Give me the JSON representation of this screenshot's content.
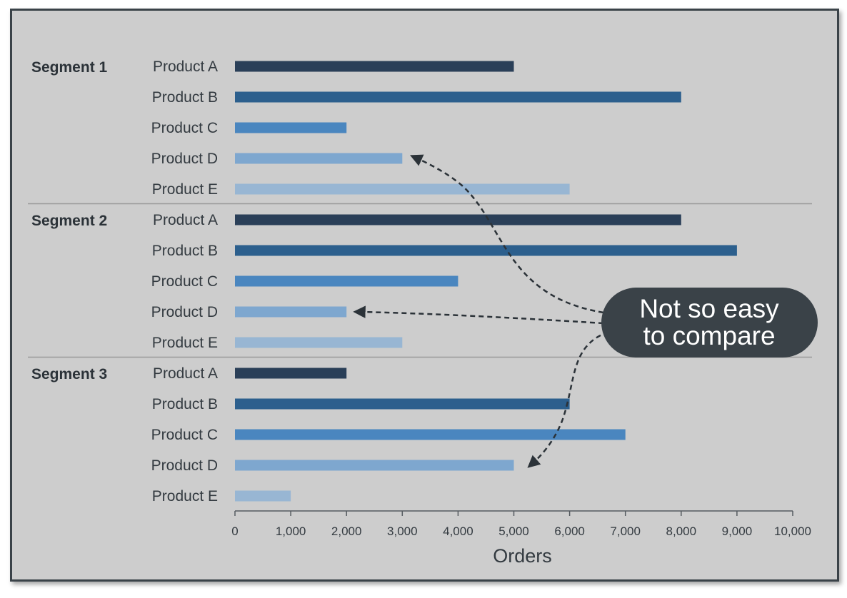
{
  "chart_data": {
    "type": "bar",
    "orientation": "horizontal",
    "xlabel": "Orders",
    "xlim": [
      0,
      10000
    ],
    "xticks": [
      0,
      1000,
      2000,
      3000,
      4000,
      5000,
      6000,
      7000,
      8000,
      9000,
      10000
    ],
    "xtick_labels": [
      "0",
      "1,000",
      "2,000",
      "3,000",
      "4,000",
      "5,000",
      "6,000",
      "7,000",
      "8,000",
      "9,000",
      "10,000"
    ],
    "categories": [
      "Product A",
      "Product B",
      "Product C",
      "Product D",
      "Product E"
    ],
    "segments": [
      {
        "name": "Segment 1",
        "values": [
          5000,
          8000,
          2000,
          3000,
          6000
        ]
      },
      {
        "name": "Segment 2",
        "values": [
          8000,
          9000,
          4000,
          2000,
          3000
        ]
      },
      {
        "name": "Segment 3",
        "values": [
          2000,
          6000,
          7000,
          5000,
          1000
        ]
      }
    ],
    "product_colors": [
      "#2a3f58",
      "#2c5f8d",
      "#4a86bf",
      "#7ea7cf",
      "#98b6d3"
    ],
    "annotation": {
      "text_lines": [
        "Not so easy",
        "to compare"
      ],
      "points_to": "Product D",
      "background": "#3a4248"
    },
    "grid": false
  }
}
